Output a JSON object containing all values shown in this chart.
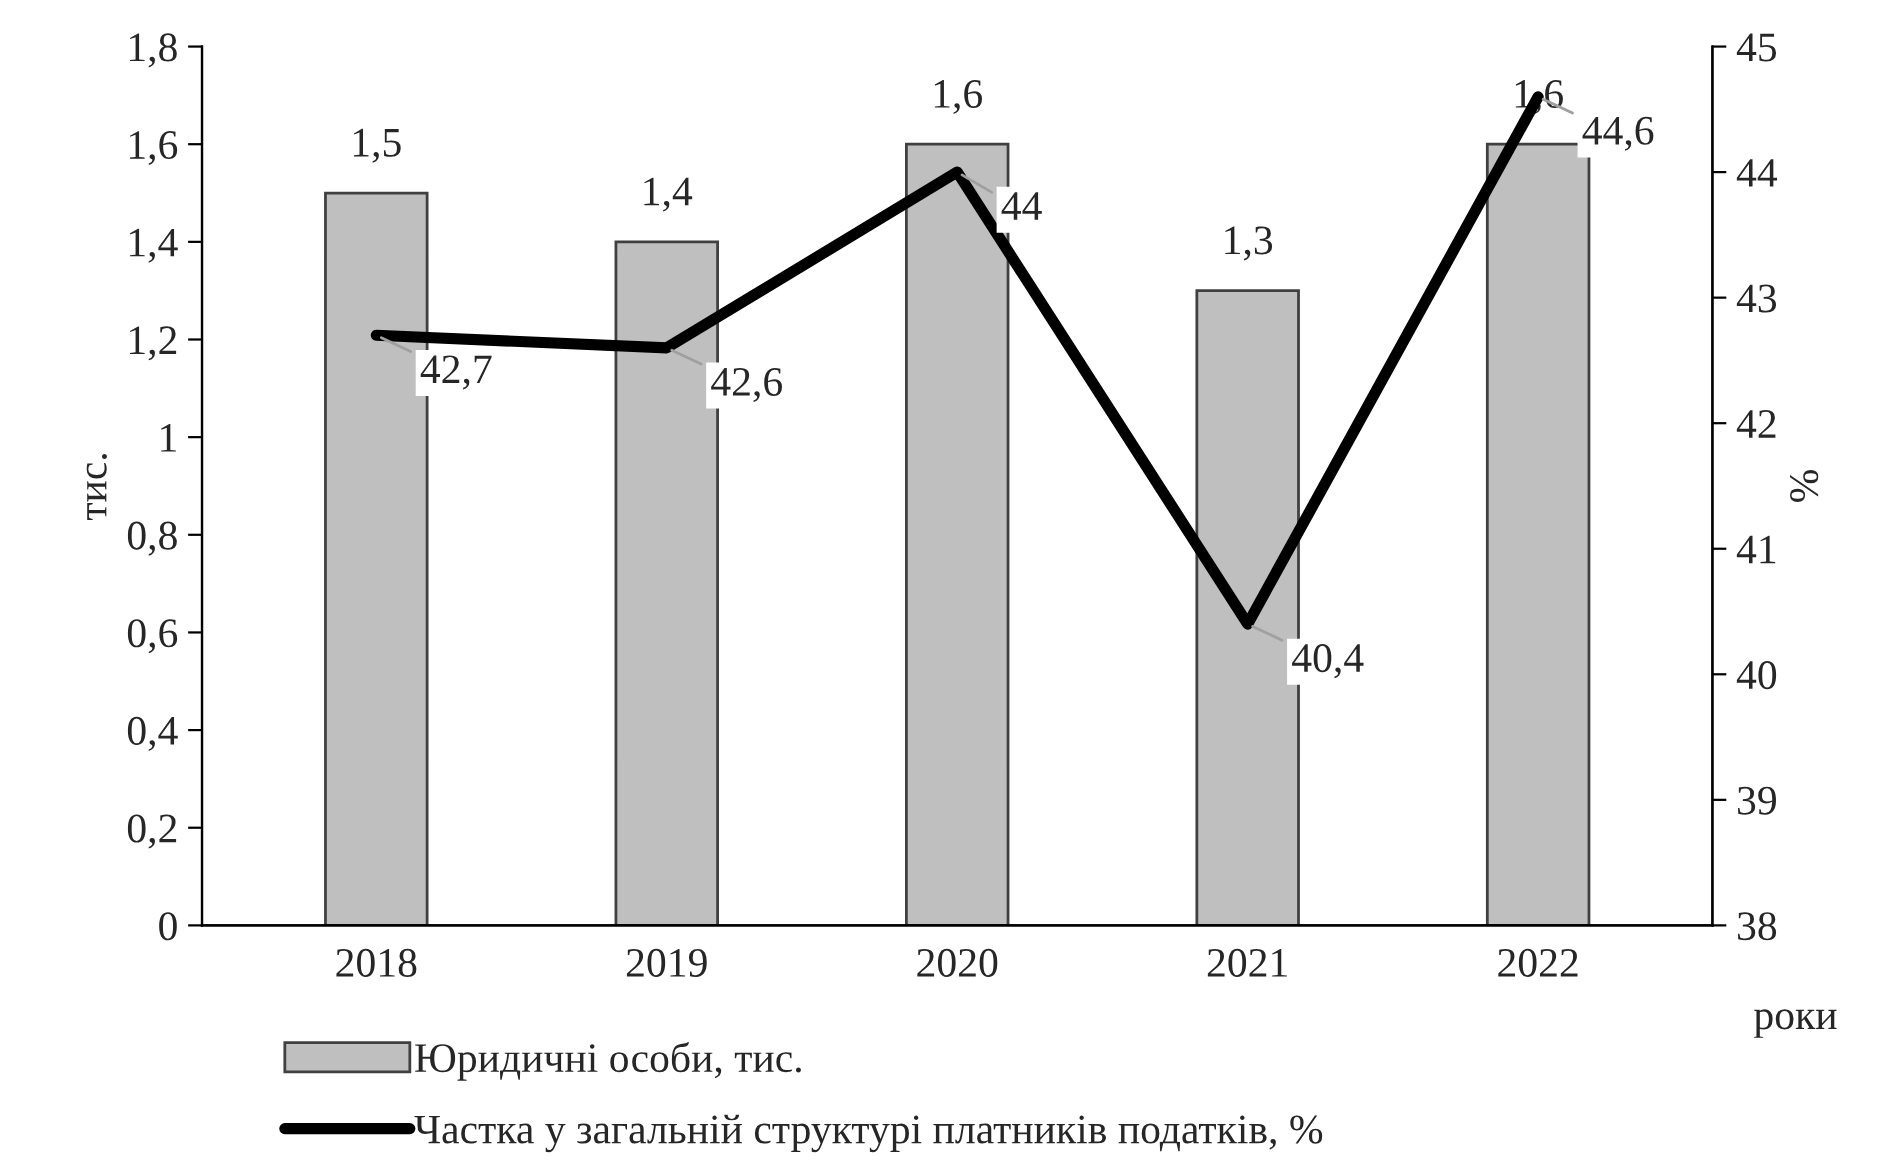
{
  "chart_data": {
    "type": "bar",
    "categories": [
      "2018",
      "2019",
      "2020",
      "2021",
      "2022"
    ],
    "xlabel": "роки",
    "ylabel": "тис.",
    "y2label": "%",
    "series": [
      {
        "name": "Юридичні особи, тис.",
        "color": "#bfbfbf",
        "values": [
          1.5,
          1.4,
          1.6,
          1.3,
          1.6
        ],
        "value_labels": [
          "1,5",
          "1,4",
          "1,6",
          "1,3",
          "1,6"
        ]
      },
      {
        "name": "Частка у загальній структурі платників податків, %",
        "type": "line",
        "axis": "y2",
        "color": "#000000",
        "values": [
          42.7,
          42.6,
          44,
          40.4,
          44.6
        ],
        "value_labels": [
          "42,7",
          "42,6",
          "44",
          "40,4",
          "44,6"
        ]
      }
    ],
    "ylim": [
      0,
      1.8
    ],
    "yticks": [
      0,
      {
        "value": 0.2,
        "label": "0,2"
      },
      {
        "value": 0.4,
        "label": "0,4"
      },
      {
        "value": 0.6,
        "label": "0,6"
      },
      {
        "value": 0.8,
        "label": "0,8"
      },
      1,
      {
        "value": 1.2,
        "label": "1,2"
      },
      {
        "value": 1.4,
        "label": "1,4"
      },
      {
        "value": 1.6,
        "label": "1,6"
      },
      {
        "value": 1.8,
        "label": "1,8"
      }
    ],
    "y2lim": [
      38,
      45
    ],
    "y2ticks": [
      38,
      39,
      40,
      41,
      42,
      43,
      44,
      45
    ],
    "legend": "bottom",
    "grid": false,
    "marker": "none",
    "line_style": "solid"
  }
}
